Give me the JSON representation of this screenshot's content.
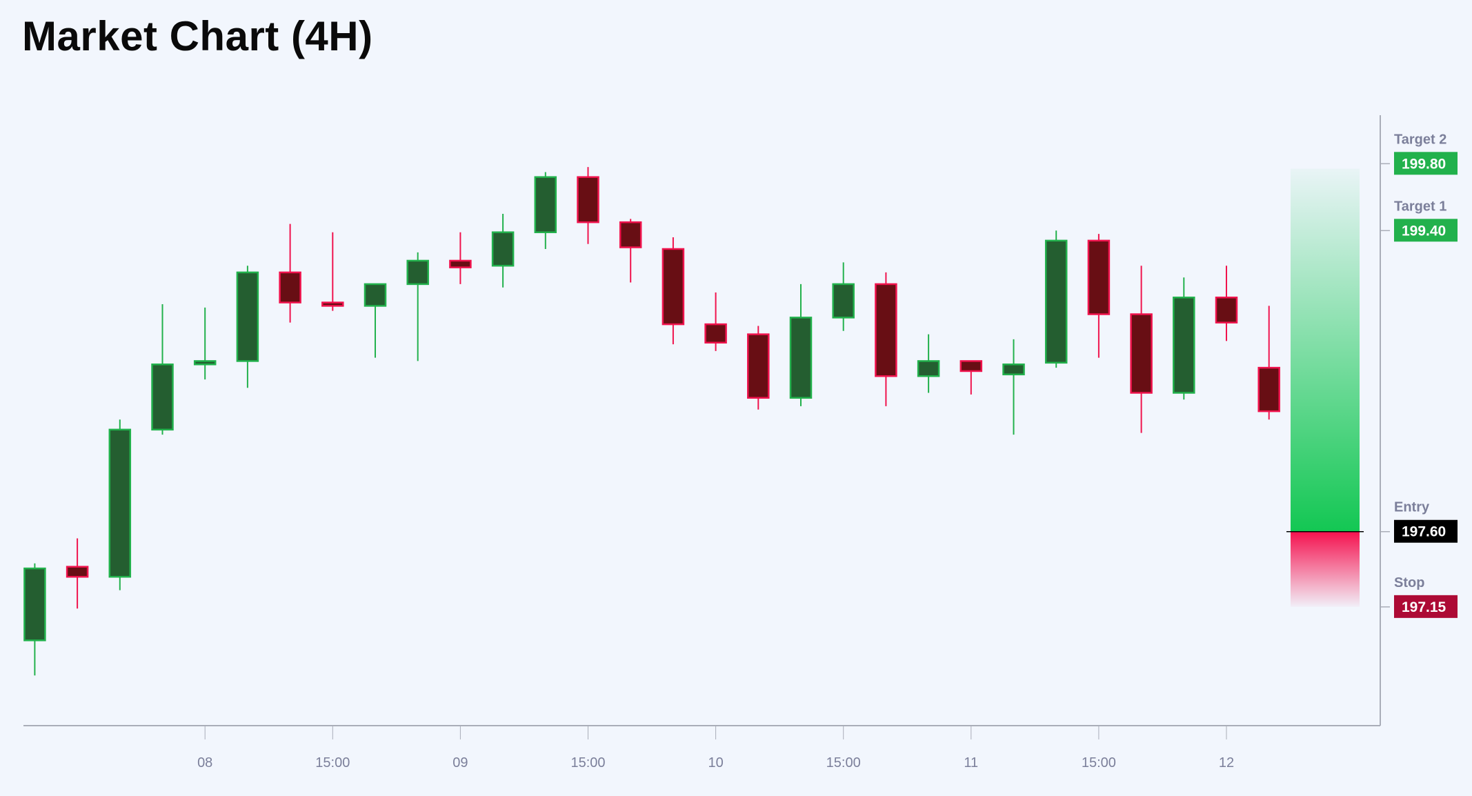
{
  "title": "Market Chart (4H)",
  "chart_data": {
    "type": "candlestick",
    "title": "Market Chart (4H)",
    "xlabel": "",
    "ylabel": "",
    "ylim": [
      196.44,
      200.09
    ],
    "grid": false,
    "x_ticks": [
      {
        "index": 4,
        "label": "08"
      },
      {
        "index": 7,
        "label": "15:00"
      },
      {
        "index": 10,
        "label": "09"
      },
      {
        "index": 13,
        "label": "15:00"
      },
      {
        "index": 16,
        "label": "10"
      },
      {
        "index": 19,
        "label": "15:00"
      },
      {
        "index": 22,
        "label": "11"
      },
      {
        "index": 25,
        "label": "15:00"
      },
      {
        "index": 28,
        "label": "12"
      }
    ],
    "candles": [
      {
        "o": 196.95,
        "h": 197.41,
        "l": 196.74,
        "c": 197.38
      },
      {
        "o": 197.39,
        "h": 197.56,
        "l": 197.14,
        "c": 197.33
      },
      {
        "o": 197.33,
        "h": 198.27,
        "l": 197.25,
        "c": 198.21
      },
      {
        "o": 198.21,
        "h": 198.96,
        "l": 198.18,
        "c": 198.6
      },
      {
        "o": 198.6,
        "h": 198.94,
        "l": 198.51,
        "c": 198.62
      },
      {
        "o": 198.62,
        "h": 199.19,
        "l": 198.46,
        "c": 199.15
      },
      {
        "o": 199.15,
        "h": 199.44,
        "l": 198.85,
        "c": 198.97
      },
      {
        "o": 198.97,
        "h": 199.39,
        "l": 198.92,
        "c": 198.95
      },
      {
        "o": 198.95,
        "h": 199.08,
        "l": 198.64,
        "c": 199.08
      },
      {
        "o": 199.08,
        "h": 199.27,
        "l": 198.62,
        "c": 199.22
      },
      {
        "o": 199.22,
        "h": 199.39,
        "l": 199.08,
        "c": 199.18
      },
      {
        "o": 199.19,
        "h": 199.5,
        "l": 199.06,
        "c": 199.39
      },
      {
        "o": 199.39,
        "h": 199.75,
        "l": 199.29,
        "c": 199.72
      },
      {
        "o": 199.72,
        "h": 199.78,
        "l": 199.32,
        "c": 199.45
      },
      {
        "o": 199.45,
        "h": 199.47,
        "l": 199.09,
        "c": 199.3
      },
      {
        "o": 199.29,
        "h": 199.36,
        "l": 198.72,
        "c": 198.84
      },
      {
        "o": 198.84,
        "h": 199.03,
        "l": 198.68,
        "c": 198.73
      },
      {
        "o": 198.78,
        "h": 198.83,
        "l": 198.33,
        "c": 198.4
      },
      {
        "o": 198.4,
        "h": 199.08,
        "l": 198.35,
        "c": 198.88
      },
      {
        "o": 198.88,
        "h": 199.21,
        "l": 198.8,
        "c": 199.08
      },
      {
        "o": 199.08,
        "h": 199.15,
        "l": 198.35,
        "c": 198.53
      },
      {
        "o": 198.53,
        "h": 198.78,
        "l": 198.43,
        "c": 198.62
      },
      {
        "o": 198.62,
        "h": 198.62,
        "l": 198.42,
        "c": 198.56
      },
      {
        "o": 198.54,
        "h": 198.75,
        "l": 198.18,
        "c": 198.6
      },
      {
        "o": 198.61,
        "h": 199.4,
        "l": 198.58,
        "c": 199.34
      },
      {
        "o": 199.34,
        "h": 199.38,
        "l": 198.64,
        "c": 198.9
      },
      {
        "o": 198.9,
        "h": 199.19,
        "l": 198.19,
        "c": 198.43
      },
      {
        "o": 198.43,
        "h": 199.12,
        "l": 198.39,
        "c": 199.0
      },
      {
        "o": 199.0,
        "h": 199.19,
        "l": 198.74,
        "c": 198.85
      },
      {
        "o": 198.58,
        "h": 198.95,
        "l": 198.27,
        "c": 198.32
      }
    ],
    "levels": [
      {
        "name": "Target 2",
        "value": 199.8,
        "label": "199.80",
        "color": "#22b14c"
      },
      {
        "name": "Target 1",
        "value": 199.4,
        "label": "199.40",
        "color": "#22b14c"
      },
      {
        "name": "Entry",
        "value": 197.6,
        "label": "197.60",
        "color": "#000000"
      },
      {
        "name": "Stop",
        "value": 197.15,
        "label": "197.15",
        "color": "#ad0a35"
      }
    ],
    "position_tool": {
      "entry": 197.6,
      "stop": 197.15,
      "profit_top": 199.77,
      "profit_color": "#13c753",
      "loss_color": "#f5124f"
    },
    "colors": {
      "up_body": "#245e30",
      "up_border": "#22b14c",
      "down_body": "#680e14",
      "down_border": "#f0134d",
      "background": "#f2f6fd",
      "axis": "#a9adb8"
    }
  }
}
